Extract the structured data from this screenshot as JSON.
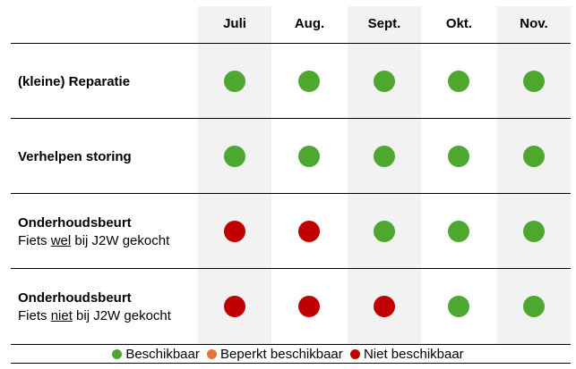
{
  "months": [
    "Juli",
    "Aug.",
    "Sept.",
    "Okt.",
    "Nov."
  ],
  "rows": [
    {
      "title": "(kleine) Reparatie",
      "subtitle_pre": "",
      "subtitle_em": "",
      "subtitle_post": "",
      "status": [
        "available",
        "available",
        "available",
        "available",
        "available"
      ]
    },
    {
      "title": "Verhelpen storing",
      "subtitle_pre": "",
      "subtitle_em": "",
      "subtitle_post": "",
      "status": [
        "available",
        "available",
        "available",
        "available",
        "available"
      ]
    },
    {
      "title": "Onderhoudsbeurt",
      "subtitle_pre": "Fiets ",
      "subtitle_em": "wel",
      "subtitle_post": " bij J2W gekocht",
      "status": [
        "unavailable",
        "unavailable",
        "available",
        "available",
        "available"
      ]
    },
    {
      "title": "Onderhoudsbeurt",
      "subtitle_pre": "Fiets ",
      "subtitle_em": "niet",
      "subtitle_post": " bij J2W gekocht",
      "status": [
        "unavailable",
        "unavailable",
        "unavailable",
        "available",
        "available"
      ]
    }
  ],
  "legend": {
    "available": "Beschikbaar",
    "limited": "Beperkt beschikbaar",
    "unavailable": "Niet beschikbaar"
  },
  "colors": {
    "available": "#4ea72e",
    "limited": "#e97132",
    "unavailable": "#c00000",
    "column_band": "#f2f2f2"
  }
}
